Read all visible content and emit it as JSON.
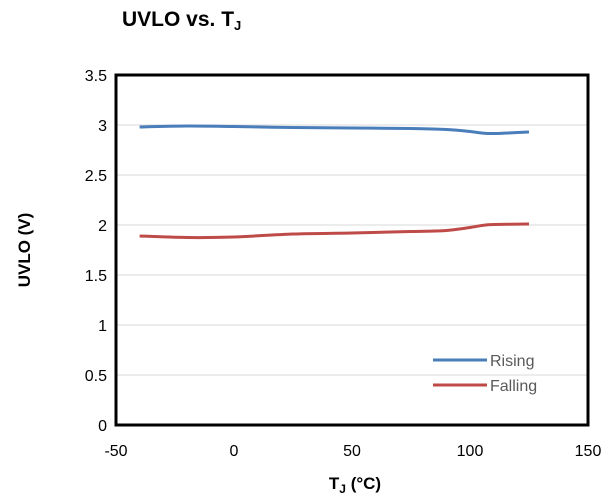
{
  "title": {
    "main": "UVLO vs. T",
    "sub": "J"
  },
  "chart_data": {
    "type": "line",
    "title": "UVLO vs. TJ",
    "xlabel": "TJ (°C)",
    "ylabel": "UVLO (V)",
    "xlim": [
      -50,
      150
    ],
    "ylim": [
      0,
      3.5
    ],
    "x_ticks": [
      -50,
      0,
      50,
      100,
      150
    ],
    "y_ticks": [
      0,
      0.5,
      1,
      1.5,
      2,
      2.5,
      3,
      3.5
    ],
    "x_tick_labels": [
      "-50",
      "0",
      "50",
      "100",
      "150"
    ],
    "y_tick_labels": [
      "0",
      "0.5",
      "1",
      "1.5",
      "2",
      "2.5",
      "3",
      "3.5"
    ],
    "grid": true,
    "legend_position": "bottom-right",
    "series": [
      {
        "name": "Rising",
        "color": "#4a7ebb",
        "x": [
          -40,
          -20,
          0,
          25,
          50,
          75,
          90,
          100,
          105,
          110,
          125
        ],
        "y": [
          2.98,
          2.99,
          2.985,
          2.975,
          2.97,
          2.965,
          2.955,
          2.935,
          2.92,
          2.915,
          2.93
        ]
      },
      {
        "name": "Falling",
        "color": "#be4b48",
        "x": [
          -40,
          -20,
          0,
          25,
          50,
          75,
          90,
          100,
          105,
          110,
          125
        ],
        "y": [
          1.89,
          1.875,
          1.88,
          1.91,
          1.92,
          1.935,
          1.945,
          1.975,
          1.995,
          2.005,
          2.01
        ]
      }
    ]
  },
  "axis_labels": {
    "x_main": "T",
    "x_sub": "J",
    "x_unit": " (°C)",
    "y": "UVLO (V)"
  }
}
